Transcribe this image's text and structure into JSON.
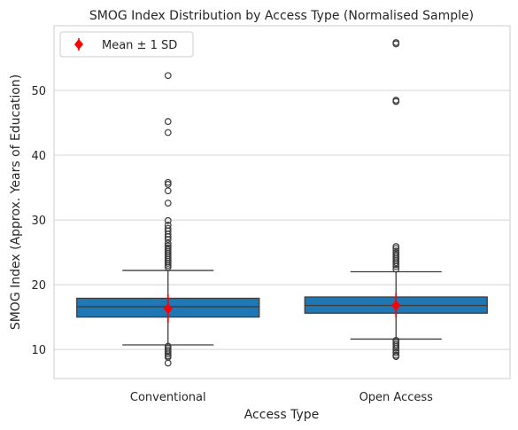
{
  "chart_data": {
    "type": "box",
    "title": "SMOG Index Distribution by Access Type (Normalised Sample)",
    "xlabel": "Access Type",
    "ylabel": "SMOG Index (Approx. Years of Education)",
    "ylim": [
      5.5,
      60
    ],
    "yticks": [
      10,
      20,
      30,
      40,
      50
    ],
    "grid": "horizontal",
    "legend": {
      "position": "top-left",
      "label": "Mean ± 1 SD",
      "marker": "red diamond with error bar"
    },
    "colors": {
      "box": "#1f77b4",
      "box_edge": "#3d3d3d",
      "mean": "#ff0000",
      "grid": "#d4d4d4",
      "spine": "#cccccc"
    },
    "categories": [
      "Conventional",
      "Open Access"
    ],
    "boxes": [
      {
        "category": "Conventional",
        "q1": 15.0,
        "median": 16.6,
        "q3": 17.9,
        "whisker_low": 10.7,
        "whisker_high": 22.2,
        "mean": 16.3,
        "sd": 2.2,
        "outliers": [
          52.3,
          45.2,
          43.5,
          35.8,
          35.5,
          34.5,
          32.6,
          29.9,
          29.2,
          28.7,
          28.3,
          27.8,
          27.4,
          27.0,
          26.4,
          26.0,
          25.7,
          25.4,
          25.1,
          24.8,
          24.5,
          24.2,
          23.9,
          23.6,
          23.3,
          23.0,
          22.7,
          10.5,
          10.2,
          9.9,
          9.6,
          9.3,
          9.0,
          8.8,
          7.9
        ]
      },
      {
        "category": "Open Access",
        "q1": 15.6,
        "median": 16.8,
        "q3": 18.1,
        "whisker_low": 11.6,
        "whisker_high": 22.0,
        "mean": 16.8,
        "sd": 1.9,
        "outliers": [
          57.4,
          57.2,
          48.5,
          48.3,
          25.9,
          25.6,
          25.2,
          24.9,
          24.6,
          24.3,
          24.0,
          23.7,
          23.4,
          23.1,
          22.8,
          22.4,
          11.4,
          11.1,
          10.8,
          10.5,
          10.2,
          9.9,
          9.5,
          9.1,
          8.9
        ]
      }
    ]
  }
}
